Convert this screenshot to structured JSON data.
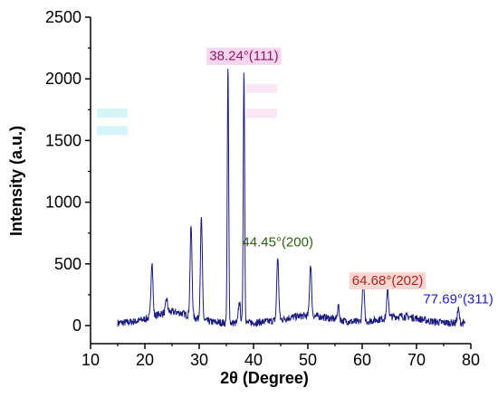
{
  "chart_data": {
    "type": "line",
    "title": "",
    "xlabel": "2θ (Degree)",
    "ylabel": "Intensity (a.u.)",
    "xlim": [
      10,
      80
    ],
    "ylim": [
      -100,
      2500
    ],
    "xticks": [
      10,
      20,
      30,
      40,
      50,
      60,
      70,
      80
    ],
    "yticks": [
      0,
      500,
      1000,
      1500,
      2000,
      2500
    ],
    "grid": false,
    "series": [
      {
        "color": "#1a1a80",
        "peaks": [
          {
            "x": 21.3,
            "y": 480
          },
          {
            "x": 24.0,
            "y": 140
          },
          {
            "x": 28.5,
            "y": 760
          },
          {
            "x": 30.4,
            "y": 850
          },
          {
            "x": 35.3,
            "y": 2110
          },
          {
            "x": 37.4,
            "y": 200
          },
          {
            "x": 38.24,
            "y": 2080
          },
          {
            "x": 44.45,
            "y": 540
          },
          {
            "x": 50.5,
            "y": 450
          },
          {
            "x": 55.6,
            "y": 140
          },
          {
            "x": 60.2,
            "y": 390
          },
          {
            "x": 64.7,
            "y": 250
          },
          {
            "x": 77.69,
            "y": 140
          }
        ]
      }
    ],
    "annotations": [
      {
        "text": "38.24°(111)",
        "x": 38.24,
        "y": 2150,
        "color": "#8b1a6b",
        "bg": "#f6d5ee"
      },
      {
        "text": "44.45°(200)",
        "x": 44.45,
        "y": 640,
        "color": "#2e5e0e",
        "bg": null
      },
      {
        "text": "64.68°(202)",
        "x": 64.68,
        "y": 330,
        "color": "#b02418",
        "bg": "#f8d6d2"
      },
      {
        "text": "77.69°(311)",
        "x": 77.69,
        "y": 180,
        "color": "#2020c8",
        "bg": null
      }
    ],
    "ghost_labels": [
      {
        "x": 39.0,
        "y": 1900,
        "color": "#f6d5ee"
      },
      {
        "x": 39.0,
        "y": 1700,
        "color": "#f6d5ee"
      },
      {
        "x": 11.5,
        "y": 1700,
        "color": "#b8ecf4"
      },
      {
        "x": 11.5,
        "y": 1560,
        "color": "#b8ecf4"
      }
    ]
  }
}
